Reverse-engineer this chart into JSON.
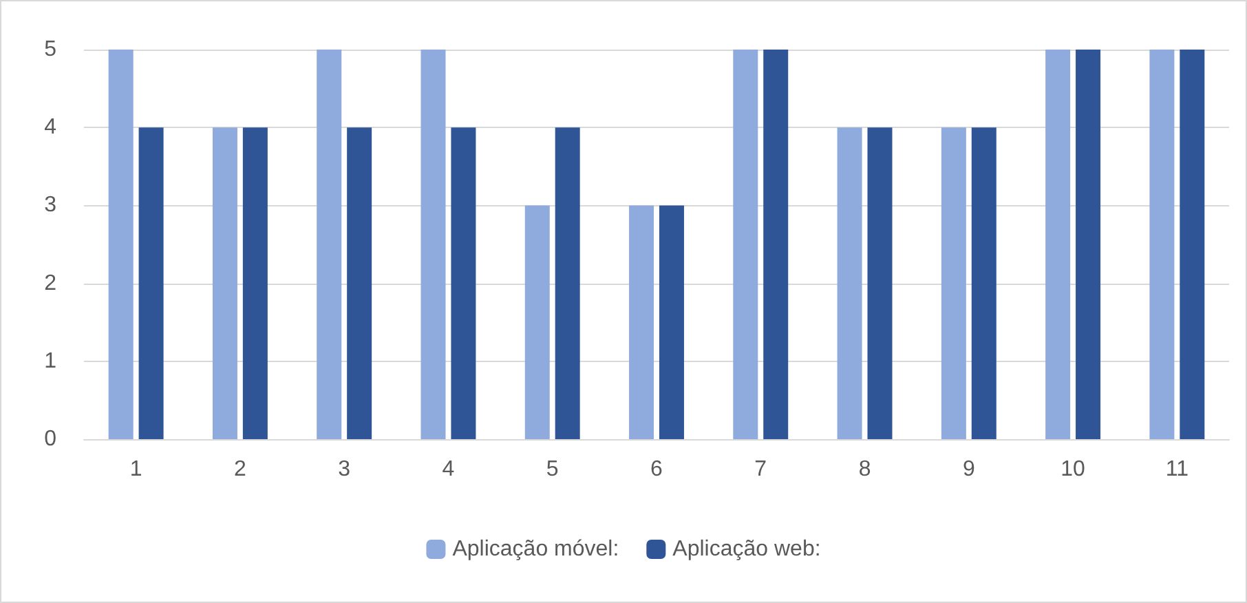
{
  "chart_data": {
    "type": "bar",
    "categories": [
      "1",
      "2",
      "3",
      "4",
      "5",
      "6",
      "7",
      "8",
      "9",
      "10",
      "11"
    ],
    "series": [
      {
        "name": "Aplicação móvel:",
        "color": "#8faadc",
        "values": [
          5,
          4,
          5,
          5,
          3,
          3,
          5,
          4,
          4,
          5,
          5
        ]
      },
      {
        "name": "Aplicação web:",
        "color": "#2f5597",
        "values": [
          4,
          4,
          4,
          4,
          4,
          3,
          5,
          4,
          4,
          5,
          5
        ]
      }
    ],
    "ylim": [
      0,
      5
    ],
    "yticks": [
      0,
      1,
      2,
      3,
      4,
      5
    ],
    "grid": "y",
    "legend": "bottom"
  }
}
